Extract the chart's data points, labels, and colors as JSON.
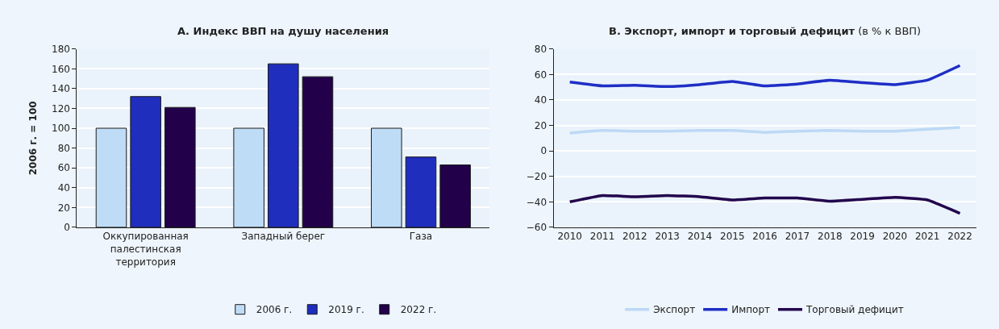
{
  "chart_data": [
    {
      "type": "bar",
      "title": "А. Индекс ВВП на душу населения",
      "ylabel": "2006 г. = 100",
      "categories": [
        "Оккупированная палестинская территория",
        "Западный берег",
        "Газа"
      ],
      "series": [
        {
          "name": "2006 г.",
          "color": "#bfdcf7",
          "values": [
            100,
            100,
            100
          ]
        },
        {
          "name": "2019 г.",
          "color": "#1f2ebd",
          "values": [
            132,
            165,
            71
          ]
        },
        {
          "name": "2022 г.",
          "color": "#22004a",
          "values": [
            121,
            152,
            63
          ]
        }
      ],
      "ylim": [
        0,
        180
      ],
      "yticks": [
        0,
        20,
        40,
        60,
        80,
        100,
        120,
        140,
        160,
        180
      ],
      "grid": "y",
      "legend": "bottom"
    },
    {
      "type": "line",
      "title": "B. Экспорт, импорт и торговый дефицит",
      "subtitle": "(в % к ВВП)",
      "categories": [
        "2010",
        "2011",
        "2012",
        "2013",
        "2014",
        "2015",
        "2016",
        "2017",
        "2018",
        "2019",
        "2020",
        "2021",
        "2022"
      ],
      "series": [
        {
          "name": "Экспорт",
          "color": "#bcd9f5",
          "values": [
            14,
            16,
            15.5,
            15.5,
            16,
            16,
            14.5,
            15.5,
            16,
            15.5,
            15.5,
            17,
            18.5
          ]
        },
        {
          "name": "Импорт",
          "color": "#1f2ec6",
          "values": [
            54,
            51,
            51.5,
            50.5,
            52,
            54.5,
            51,
            52.5,
            55.5,
            53.5,
            52,
            55.5,
            67
          ]
        },
        {
          "name": "Торговый дефицит",
          "color": "#22054d",
          "values": [
            -40,
            -35,
            -36,
            -35,
            -36,
            -38.5,
            -37,
            -37,
            -39.5,
            -38,
            -36.5,
            -38.5,
            -49
          ]
        }
      ],
      "ylim": [
        -60,
        80
      ],
      "yticks": [
        {
          "value": -60,
          "label": "−60"
        },
        {
          "value": -40,
          "label": "−40"
        },
        {
          "value": -20,
          "label": "−20"
        },
        0,
        20,
        40,
        60,
        80
      ],
      "grid": "y",
      "legend": "bottom",
      "line_style": "solid",
      "marker": "none"
    }
  ]
}
